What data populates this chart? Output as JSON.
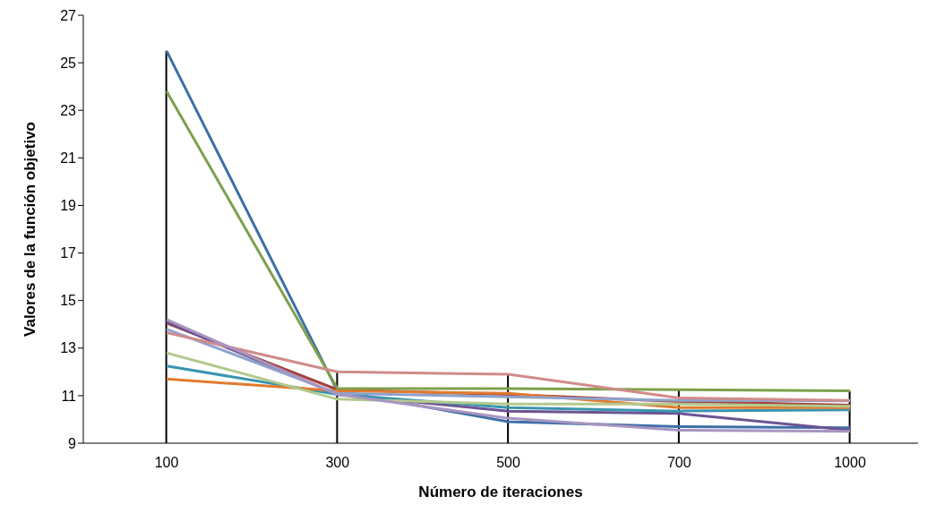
{
  "chart_data": {
    "type": "line",
    "xlabel": "Número de iteraciones",
    "ylabel": "Valores de la función objetivo",
    "categories": [
      "100",
      "300",
      "500",
      "700",
      "1000"
    ],
    "ylim": [
      9,
      27
    ],
    "yticks": [
      9,
      11,
      13,
      15,
      17,
      19,
      21,
      23,
      25,
      27
    ],
    "grid": false,
    "legend": false,
    "marker": "none",
    "line_style": "solid",
    "series": [
      {
        "color": "#3e6fa8",
        "values": [
          25.5,
          11.2,
          9.9,
          9.7,
          9.65
        ]
      },
      {
        "color": "#a5403c",
        "values": [
          14.05,
          11.25,
          11.05,
          10.75,
          10.6
        ]
      },
      {
        "color": "#7ea04b",
        "values": [
          23.8,
          11.3,
          11.3,
          11.25,
          11.2
        ]
      },
      {
        "color": "#6c5393",
        "values": [
          14.1,
          11.05,
          10.35,
          10.25,
          9.55
        ]
      },
      {
        "color": "#3a94ad",
        "values": [
          12.25,
          11.05,
          10.5,
          10.35,
          10.4
        ]
      },
      {
        "color": "#e07b30",
        "values": [
          11.7,
          11.2,
          11.1,
          10.5,
          10.5
        ]
      },
      {
        "color": "#8ea3cc",
        "values": [
          13.8,
          11.1,
          10.95,
          10.8,
          10.78
        ]
      },
      {
        "color": "#d08c8a",
        "values": [
          13.65,
          12.0,
          11.9,
          10.9,
          10.8
        ]
      },
      {
        "color": "#b2c98d",
        "values": [
          12.8,
          10.85,
          10.65,
          10.65,
          10.55
        ]
      },
      {
        "color": "#a895c1",
        "values": [
          14.2,
          11.05,
          10.05,
          9.55,
          9.5
        ]
      },
      {
        "type": "bar",
        "color": "#000000",
        "values": [
          25.5,
          12.0,
          11.9,
          11.25,
          11.2
        ]
      }
    ]
  }
}
